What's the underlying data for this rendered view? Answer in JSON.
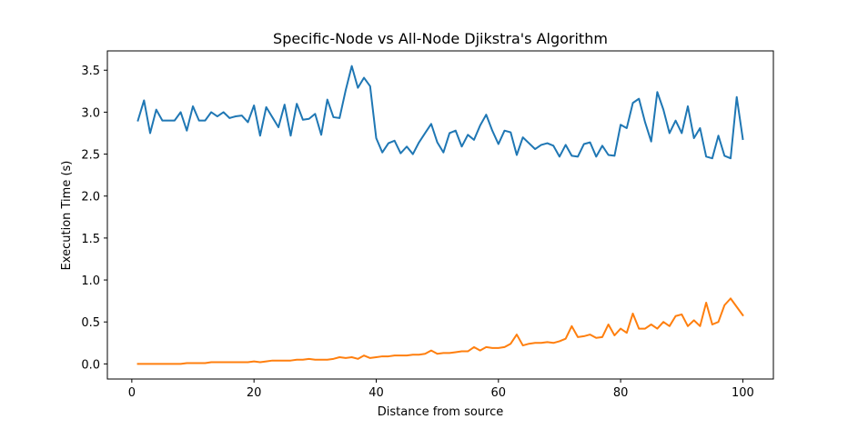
{
  "chart_data": {
    "type": "line",
    "title": "Specific-Node vs All-Node Djikstra's Algorithm",
    "xlabel": "Distance from source",
    "ylabel": "Execution Time (s)",
    "xlim": [
      -4,
      105
    ],
    "ylim": [
      -0.18,
      3.73
    ],
    "x_ticks": [
      0,
      20,
      40,
      60,
      80,
      100
    ],
    "x_tick_labels": [
      "0",
      "20",
      "40",
      "60",
      "80",
      "100"
    ],
    "y_ticks": [
      0.0,
      0.5,
      1.0,
      1.5,
      2.0,
      2.5,
      3.0,
      3.5
    ],
    "y_tick_labels": [
      "0.0",
      "0.5",
      "1.0",
      "1.5",
      "2.0",
      "2.5",
      "3.0",
      "3.5"
    ],
    "grid": false,
    "legend": "none",
    "x": [
      1,
      2,
      3,
      4,
      5,
      6,
      7,
      8,
      9,
      10,
      11,
      12,
      13,
      14,
      15,
      16,
      17,
      18,
      19,
      20,
      21,
      22,
      23,
      24,
      25,
      26,
      27,
      28,
      29,
      30,
      31,
      32,
      33,
      34,
      35,
      36,
      37,
      38,
      39,
      40,
      41,
      42,
      43,
      44,
      45,
      46,
      47,
      48,
      49,
      50,
      51,
      52,
      53,
      54,
      55,
      56,
      57,
      58,
      59,
      60,
      61,
      62,
      63,
      64,
      65,
      66,
      67,
      68,
      69,
      70,
      71,
      72,
      73,
      74,
      75,
      76,
      77,
      78,
      79,
      80,
      81,
      82,
      83,
      84,
      85,
      86,
      87,
      88,
      89,
      90,
      91,
      92,
      93,
      94,
      95,
      96,
      97,
      98,
      99,
      100
    ],
    "series": [
      {
        "color": "#1f77b4",
        "values": [
          2.9,
          3.14,
          2.75,
          3.03,
          2.9,
          2.9,
          2.9,
          3.0,
          2.78,
          3.07,
          2.9,
          2.9,
          3.0,
          2.95,
          3.0,
          2.93,
          2.95,
          2.96,
          2.88,
          3.08,
          2.72,
          3.06,
          2.94,
          2.82,
          3.09,
          2.72,
          3.1,
          2.91,
          2.92,
          2.98,
          2.73,
          3.15,
          2.94,
          2.93,
          3.26,
          3.55,
          3.29,
          3.41,
          3.31,
          2.69,
          2.52,
          2.63,
          2.66,
          2.51,
          2.59,
          2.5,
          2.64,
          2.75,
          2.86,
          2.64,
          2.52,
          2.75,
          2.78,
          2.59,
          2.73,
          2.67,
          2.84,
          2.97,
          2.78,
          2.62,
          2.78,
          2.76,
          2.49,
          2.7,
          2.63,
          2.56,
          2.61,
          2.63,
          2.6,
          2.47,
          2.61,
          2.48,
          2.47,
          2.62,
          2.64,
          2.47,
          2.6,
          2.49,
          2.48,
          2.85,
          2.81,
          3.11,
          3.16,
          2.88,
          2.65,
          3.24,
          3.03,
          2.75,
          2.9,
          2.75,
          3.07,
          2.69,
          2.81,
          2.47,
          2.45,
          2.72,
          2.48,
          2.45,
          3.18,
          2.68
        ]
      },
      {
        "color": "#ff7f0e",
        "values": [
          0.0,
          0.0,
          0.0,
          0.0,
          0.0,
          0.0,
          0.0,
          0.0,
          0.01,
          0.01,
          0.01,
          0.01,
          0.02,
          0.02,
          0.02,
          0.02,
          0.02,
          0.02,
          0.02,
          0.03,
          0.02,
          0.03,
          0.04,
          0.04,
          0.04,
          0.04,
          0.05,
          0.05,
          0.06,
          0.05,
          0.05,
          0.05,
          0.06,
          0.08,
          0.07,
          0.08,
          0.06,
          0.1,
          0.07,
          0.08,
          0.09,
          0.09,
          0.1,
          0.1,
          0.1,
          0.11,
          0.11,
          0.12,
          0.16,
          0.12,
          0.13,
          0.13,
          0.14,
          0.15,
          0.15,
          0.2,
          0.16,
          0.2,
          0.19,
          0.19,
          0.2,
          0.24,
          0.35,
          0.22,
          0.24,
          0.25,
          0.25,
          0.26,
          0.25,
          0.27,
          0.3,
          0.45,
          0.32,
          0.33,
          0.35,
          0.31,
          0.32,
          0.47,
          0.34,
          0.42,
          0.37,
          0.6,
          0.42,
          0.42,
          0.47,
          0.42,
          0.5,
          0.45,
          0.57,
          0.59,
          0.45,
          0.52,
          0.45,
          0.73,
          0.47,
          0.5,
          0.7,
          0.78,
          0.68,
          0.58
        ]
      }
    ]
  }
}
